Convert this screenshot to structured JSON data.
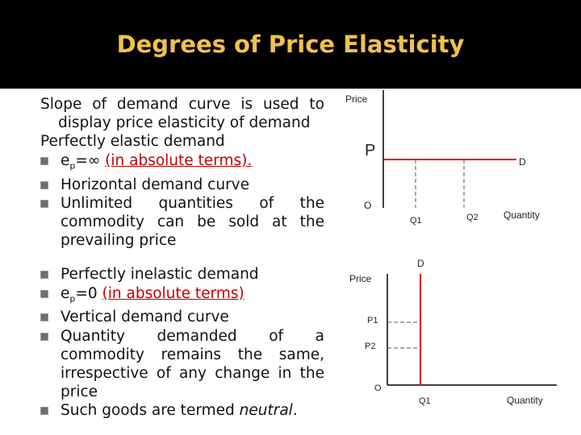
{
  "title": "Degrees of Price Elasticity",
  "intro": "Slope of demand curve is used to display price elasticity of demand",
  "elastic": {
    "heading": "Perfectly elastic demand",
    "bullets": [
      {
        "symbol": "e",
        "subscript": "p",
        "relation": "=∞ ",
        "note": "(in absolute terms)."
      },
      {
        "text": "Horizontal demand curve"
      },
      {
        "text": "Unlimited quantities of the commodity can be sold at the prevailing price"
      }
    ]
  },
  "inelastic": {
    "bullets": [
      {
        "text": "Perfectly inelastic demand"
      },
      {
        "symbol": "e",
        "subscript": "p",
        "relation": "=0 ",
        "note": "(in absolute terms)"
      },
      {
        "text": "Vertical demand curve"
      },
      {
        "text": "Quantity demanded of a commodity remains the same, irrespective of any change in the price"
      },
      {
        "lead": "Such goods are termed ",
        "emphasis": "neutral",
        "tail": "."
      }
    ]
  },
  "diagram_elastic": {
    "y_label": "Price",
    "price": "P",
    "curve": "D",
    "origin": "O",
    "q1": "Q1",
    "q2": "Q2",
    "x_label": "Quantity"
  },
  "diagram_inelastic": {
    "curve": "D",
    "y_label": "Price",
    "p1": "P1",
    "p2": "P2",
    "origin": "O",
    "q1": "Q1",
    "x_label": "Quantity"
  }
}
